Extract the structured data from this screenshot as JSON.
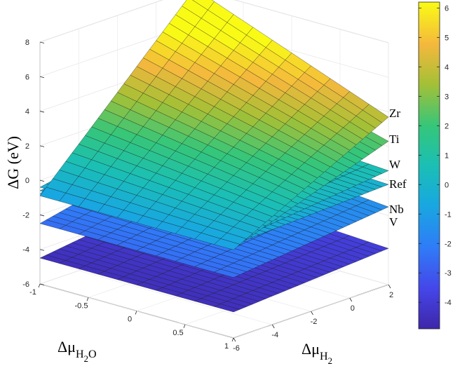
{
  "chart_data": {
    "type": "surface3d",
    "zlabel": "ΔG (eV)",
    "xlabel": {
      "base": "Δμ",
      "sub1": "H",
      "sub2": "2",
      "sub3": "O"
    },
    "ylabel": {
      "base": "Δμ",
      "sub1": "H",
      "sub2": "2"
    },
    "x_ticks": [
      "-1",
      "-0.5",
      "0",
      "0.5",
      "1"
    ],
    "y_ticks": [
      "-6",
      "-4",
      "-2",
      "0",
      "2"
    ],
    "z_ticks": [
      "-6",
      "-4",
      "-2",
      "0",
      "2",
      "4",
      "6",
      "8"
    ],
    "xlim": [
      -1,
      1
    ],
    "ylim": [
      -6,
      2
    ],
    "zlim": [
      -6,
      8
    ],
    "colorbar": {
      "range": [
        -4.9,
        6.2
      ],
      "ticks": [
        "-4",
        "-3",
        "-2",
        "-1",
        "0",
        "1",
        "2",
        "3",
        "4",
        "5",
        "6"
      ]
    },
    "series": [
      {
        "name": "Zr",
        "corners": {
          "x-1_y-6": -0.9,
          "x-1_y2": 8.0,
          "x1_y-6": -0.9,
          "x1_y2": 3.7
        }
      },
      {
        "name": "Ti",
        "corners": {
          "x-1_y-6": -0.8,
          "x-1_y2": 5.4,
          "x1_y-6": -0.8,
          "x1_y2": 2.3
        }
      },
      {
        "name": "W",
        "corners": {
          "x-1_y-6": -0.4,
          "x-1_y2": 1.3,
          "x1_y-6": -0.4,
          "x1_y2": 0.6
        }
      },
      {
        "name": "Ref",
        "corners": {
          "x-1_y-6": -0.6,
          "x-1_y2": 0.3,
          "x1_y-6": -0.6,
          "x1_y2": -0.2
        }
      },
      {
        "name": "Nb",
        "corners": {
          "x-1_y-6": -2.5,
          "x-1_y2": -0.5,
          "x1_y-6": -2.5,
          "x1_y2": -1.5
        }
      },
      {
        "name": "V",
        "corners": {
          "x-1_y-6": -4.5,
          "x-1_y2": -3.3,
          "x1_y-6": -4.5,
          "x1_y2": -3.9
        }
      }
    ]
  }
}
